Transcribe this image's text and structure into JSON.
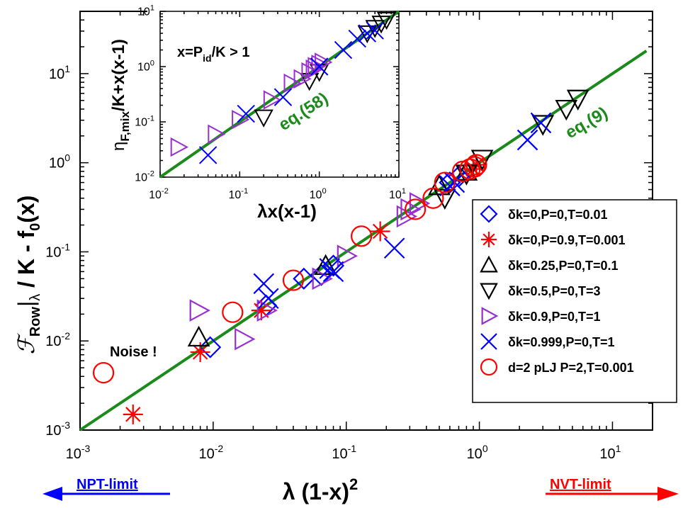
{
  "chart_data": [
    {
      "id": "main",
      "type": "scatter",
      "title": "",
      "xscale": "log",
      "yscale": "log",
      "xlim": [
        0.001,
        20
      ],
      "ylim": [
        0.001,
        50
      ],
      "xticks": [
        {
          "value": 0.001,
          "base": "10",
          "exp": "-3"
        },
        {
          "value": 0.01,
          "base": "10",
          "exp": "-2"
        },
        {
          "value": 0.1,
          "base": "10",
          "exp": "-1"
        },
        {
          "value": 1,
          "base": "10",
          "exp": "0"
        },
        {
          "value": 10,
          "base": "10",
          "exp": "1"
        }
      ],
      "yticks": [
        {
          "value": 0.001,
          "base": "10",
          "exp": "-3"
        },
        {
          "value": 0.01,
          "base": "10",
          "exp": "-2"
        },
        {
          "value": 0.1,
          "base": "10",
          "exp": "-1"
        },
        {
          "value": 1,
          "base": "10",
          "exp": "0"
        },
        {
          "value": 10,
          "base": "10",
          "exp": "1"
        }
      ],
      "xlabel": {
        "main": "λ (1-x)",
        "sup": "2"
      },
      "ylabel": {
        "script_f": "ℱ",
        "sub": "Row",
        "bar": "|",
        "lambda_sub": "λ",
        "rest": " / K - f",
        "f_sub": "0",
        "tail": "(x)"
      },
      "fit_line": {
        "label": "eq.(9)",
        "x": [
          0.001,
          18
        ],
        "y": [
          0.001,
          18
        ],
        "color": "#1a8a1a"
      },
      "annotations": [
        {
          "id": "noise",
          "text": "Noise !"
        }
      ],
      "legend": {
        "position": "right",
        "entries": [
          {
            "label": "δk=0,P=0,T=0.01",
            "marker": "diamond",
            "color": "#0000ff"
          },
          {
            "label": "δk=0,P=0.9,T=0.001",
            "marker": "star",
            "color": "#ff0000"
          },
          {
            "label": "δk=0.25,P=0,T=0.1",
            "marker": "triangle-up",
            "color": "#000000"
          },
          {
            "label": "δk=0.5,P=0,T=3",
            "marker": "triangle-down",
            "color": "#000000"
          },
          {
            "label": "δk=0.9,P=0,T=1",
            "marker": "triangle-right",
            "color": "#9a2fd0"
          },
          {
            "label": "δk=0.999,P=0,T=1",
            "marker": "x",
            "color": "#0000ff"
          },
          {
            "label": "d=2 pLJ P=2,T=0.001",
            "marker": "circle",
            "color": "#ff0000"
          }
        ]
      },
      "series": [
        {
          "name": "δk=0,P=0,T=0.01",
          "marker": "diamond",
          "color": "#0000ff",
          "x": [
            0.0095,
            0.025,
            0.048,
            0.065,
            0.08,
            0.6,
            0.7
          ],
          "y": [
            0.0085,
            0.025,
            0.05,
            0.055,
            0.07,
            0.6,
            0.7
          ]
        },
        {
          "name": "δk=0,P=0.9,T=0.001",
          "marker": "star",
          "color": "#ff0000",
          "x": [
            0.0025,
            0.008,
            0.023,
            0.18,
            0.9,
            0.95
          ],
          "y": [
            0.0015,
            0.0075,
            0.022,
            0.17,
            0.85,
            0.95
          ]
        },
        {
          "name": "δk=0.25,P=0,T=0.1",
          "marker": "triangle-up",
          "color": "#000000",
          "x": [
            0.0078,
            0.07,
            0.5,
            0.8
          ],
          "y": [
            0.011,
            0.07,
            0.55,
            0.8
          ]
        },
        {
          "name": "δk=0.5,P=0,T=3",
          "marker": "triangle-down",
          "color": "#000000",
          "x": [
            0.55,
            0.8,
            1.05,
            3.0,
            4.5,
            5.5
          ],
          "y": [
            0.4,
            0.75,
            1.1,
            2.7,
            4.0,
            5.2
          ]
        },
        {
          "name": "δk=0.9,P=0,T=1",
          "marker": "triangle-right",
          "color": "#9a2fd0",
          "x": [
            0.0078,
            0.017,
            0.025,
            0.065,
            0.1,
            0.28,
            0.3,
            0.35
          ],
          "y": [
            0.022,
            0.0105,
            0.022,
            0.05,
            0.09,
            0.25,
            0.3,
            0.35
          ]
        },
        {
          "name": "δk=0.999,P=0,T=1",
          "marker": "x",
          "color": "#0000ff",
          "x": [
            0.024,
            0.026,
            0.075,
            0.08,
            0.23,
            0.6,
            0.65,
            2.3,
            2.9
          ],
          "y": [
            0.044,
            0.03,
            0.065,
            0.06,
            0.11,
            0.55,
            0.6,
            1.8,
            2.8
          ]
        },
        {
          "name": "d=2 pLJ P=2,T=0.001",
          "marker": "circle",
          "color": "#ff0000",
          "x": [
            0.0015,
            0.014,
            0.04,
            0.13,
            0.33,
            0.45,
            0.55,
            0.75,
            0.85,
            0.92,
            0.95
          ],
          "y": [
            0.0044,
            0.021,
            0.048,
            0.15,
            0.3,
            0.4,
            0.6,
            0.8,
            0.85,
            0.9,
            0.95
          ]
        }
      ]
    },
    {
      "id": "inset",
      "type": "scatter",
      "xscale": "log",
      "yscale": "log",
      "xlim": [
        0.01,
        10
      ],
      "ylim": [
        0.01,
        10
      ],
      "xticks": [
        {
          "value": 0.01,
          "base": "10",
          "exp": "-2"
        },
        {
          "value": 0.1,
          "base": "10",
          "exp": "-1"
        },
        {
          "value": 1,
          "base": "10",
          "exp": "0"
        },
        {
          "value": 10,
          "base": "10",
          "exp": "1"
        }
      ],
      "yticks": [
        {
          "value": 0.01,
          "base": "10",
          "exp": "-2"
        },
        {
          "value": 0.1,
          "base": "10",
          "exp": "-1"
        },
        {
          "value": 1,
          "base": "10",
          "exp": "0"
        },
        {
          "value": 10,
          "base": "10",
          "exp": "1"
        }
      ],
      "xlabel": {
        "main": "λx(x-1)"
      },
      "ylabel": {
        "eta": "η",
        "sub": "F,mix",
        "rest": "/K+x(x-1)"
      },
      "condition": {
        "prefix": "x=P",
        "sub": "id",
        "suffix": "/K > 1"
      },
      "fit_line": {
        "label": "eq.(58)",
        "x": [
          0.01,
          10
        ],
        "y": [
          0.01,
          10
        ],
        "color": "#1a8a1a"
      },
      "series": [
        {
          "name": "δk=0.5,P=0,T=3",
          "marker": "triangle-down",
          "color": "#000000",
          "x": [
            0.2,
            0.75,
            1.0,
            4.0,
            5.0,
            6.0,
            7.0
          ],
          "y": [
            0.12,
            0.55,
            0.8,
            4.0,
            5.0,
            6.0,
            7.0
          ]
        },
        {
          "name": "δk=0.9,P=0,T=1",
          "marker": "triangle-right",
          "color": "#9a2fd0",
          "x": [
            0.017,
            0.05,
            0.1,
            0.25,
            0.45,
            0.6,
            0.75,
            0.85,
            0.9,
            1.0,
            1.1
          ],
          "y": [
            0.035,
            0.06,
            0.11,
            0.25,
            0.5,
            0.6,
            0.8,
            0.9,
            1.0,
            1.1,
            1.2
          ]
        },
        {
          "name": "δk=0.999,P=0,T=1",
          "marker": "x",
          "color": "#0000ff",
          "x": [
            0.04,
            0.12,
            0.35,
            1.0,
            2.0,
            3.0,
            4.0,
            5.0
          ],
          "y": [
            0.025,
            0.14,
            0.28,
            1.0,
            2.0,
            3.2,
            4.0,
            4.5
          ]
        }
      ]
    }
  ],
  "arrows": {
    "left": {
      "label": "NPT-limit",
      "color": "#0000ff"
    },
    "right": {
      "label": "NVT-limit",
      "color": "#ff0000"
    }
  }
}
